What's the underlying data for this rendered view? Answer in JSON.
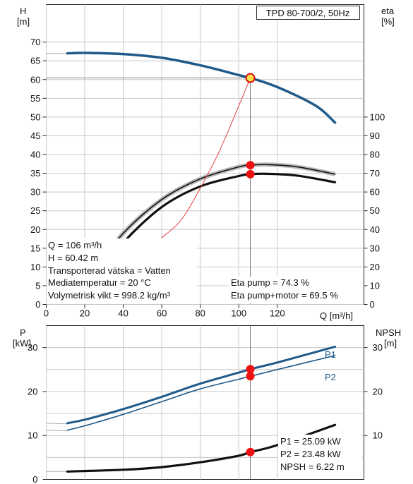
{
  "model_label": "TPD 80-700/2, 50Hz",
  "chart_data": [
    {
      "type": "line",
      "panel": "head-efficiency",
      "left_axis_label": [
        "H",
        "[m]"
      ],
      "right_axis_label": [
        "eta",
        "[%]"
      ],
      "xlabel": "Q [m³/h]",
      "xlim": [
        0,
        165
      ],
      "x_ticks": [
        0,
        20,
        40,
        60,
        80,
        100,
        120
      ],
      "ylim_left": [
        0,
        80
      ],
      "y_ticks_left": [
        0,
        5,
        10,
        15,
        20,
        25,
        30,
        35,
        40,
        45,
        50,
        55,
        60,
        65,
        70
      ],
      "ylim_right": [
        0,
        160
      ],
      "y_ticks_right": [
        0,
        10,
        20,
        30,
        40,
        50,
        60,
        70,
        80,
        90,
        100
      ],
      "series": [
        {
          "role": "head",
          "axis": "left",
          "color": "#1f5a8a",
          "x": [
            11,
            20,
            40,
            60,
            80,
            100,
            106,
            120,
            140,
            150
          ],
          "y": [
            67,
            67.1,
            66.8,
            65.8,
            63.8,
            61.2,
            60.42,
            58,
            53,
            48.5
          ]
        },
        {
          "role": "eta-pump",
          "axis": "right",
          "color": "#111111",
          "x": [
            27,
            40,
            60,
            80,
            100,
            106,
            115,
            130,
            150
          ],
          "y": [
            20,
            38,
            56,
            67,
            73.4,
            74.3,
            74.6,
            73.5,
            69.5
          ]
        },
        {
          "role": "eta-pump-motor",
          "axis": "right",
          "color": "#111111",
          "x": [
            27,
            40,
            60,
            80,
            100,
            106,
            115,
            130,
            150
          ],
          "y": [
            15,
            33,
            52,
            63,
            68.5,
            69.5,
            69.7,
            68.8,
            65.2
          ]
        },
        {
          "role": "system-curve",
          "axis": "left",
          "color": "#e04040",
          "x": [
            60,
            70,
            80,
            90,
            100,
            106
          ],
          "y": [
            17.8,
            22.5,
            31,
            41,
            53,
            60.42
          ]
        }
      ],
      "operating_point": {
        "x": 106,
        "y": 60.42
      },
      "annotations_left": [
        "Q = 106 m³/h",
        "H = 60.42 m",
        "Transporterad vätska = Vatten",
        "Mediatemperatur = 20 °C",
        "Volymetrisk vikt = 998.2 kg/m³"
      ],
      "annotations_right": [
        "Eta pump = 74.3 %",
        "Eta pump+motor = 69.5 %"
      ]
    },
    {
      "type": "line",
      "panel": "power-npsh",
      "left_axis_label": [
        "P",
        "[kW]"
      ],
      "right_axis_label": [
        "NPSH",
        "[m]"
      ],
      "xlim": [
        0,
        165
      ],
      "ylim_left": [
        0,
        35
      ],
      "y_ticks_left": [
        0,
        10,
        20,
        30
      ],
      "ylim_right": [
        0,
        35
      ],
      "y_ticks_right": [
        10,
        20,
        30
      ],
      "series": [
        {
          "name": "P1",
          "axis": "left",
          "color": "#1f5a8a",
          "x": [
            11,
            20,
            40,
            60,
            80,
            100,
            106,
            120,
            150
          ],
          "y": [
            12.8,
            13.6,
            16,
            18.8,
            21.8,
            24.3,
            25.09,
            26.6,
            30.2
          ]
        },
        {
          "name": "P2",
          "axis": "left",
          "color": "#1f5a8a",
          "x": [
            11,
            20,
            40,
            60,
            80,
            100,
            106,
            120,
            150
          ],
          "y": [
            11.2,
            12.2,
            14.8,
            17.7,
            20.6,
            22.8,
            23.48,
            25,
            28.2
          ]
        },
        {
          "role": "npsh",
          "axis": "right",
          "color": "#111111",
          "x": [
            11,
            40,
            60,
            80,
            100,
            106,
            120,
            150
          ],
          "y": [
            1.8,
            2.2,
            2.8,
            3.9,
            5.4,
            6.22,
            7.8,
            12.4
          ]
        }
      ],
      "operating_x": 106,
      "annotations": [
        "P1 = 25.09 kW",
        "P2 = 23.48 kW",
        "NPSH = 6.22 m"
      ]
    }
  ]
}
